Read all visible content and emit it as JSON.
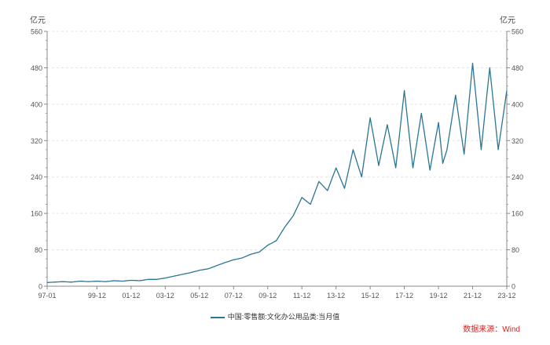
{
  "chart_data": {
    "type": "line",
    "ylabel_left": "亿元",
    "ylabel_right": "亿元",
    "ylim": [
      0,
      560
    ],
    "yticks": [
      0,
      80,
      160,
      240,
      320,
      400,
      480,
      560
    ],
    "x_tick_labels": [
      "97-01",
      "99-12",
      "01-12",
      "03-12",
      "05-12",
      "07-12",
      "09-12",
      "11-12",
      "13-12",
      "15-12",
      "17-12",
      "19-12",
      "21-12",
      "23-12"
    ],
    "grid": "horizontal dashed",
    "legend_position": "bottom-center",
    "series": [
      {
        "name": "中国:零售额:文化办公用品类:当月值",
        "color": "#2b7694",
        "anchors": [
          [
            "1997-01",
            8
          ],
          [
            "1997-06",
            9
          ],
          [
            "1997-12",
            10
          ],
          [
            "1998-06",
            9
          ],
          [
            "1998-12",
            11
          ],
          [
            "1999-06",
            10
          ],
          [
            "1999-12",
            11
          ],
          [
            "2000-06",
            10
          ],
          [
            "2000-12",
            12
          ],
          [
            "2001-06",
            11
          ],
          [
            "2001-12",
            13
          ],
          [
            "2002-06",
            12
          ],
          [
            "2002-12",
            15
          ],
          [
            "2003-06",
            15
          ],
          [
            "2003-12",
            18
          ],
          [
            "2004-06",
            22
          ],
          [
            "2004-12",
            26
          ],
          [
            "2005-06",
            30
          ],
          [
            "2005-12",
            35
          ],
          [
            "2006-06",
            38
          ],
          [
            "2006-12",
            45
          ],
          [
            "2007-06",
            52
          ],
          [
            "2007-12",
            58
          ],
          [
            "2008-06",
            62
          ],
          [
            "2008-12",
            70
          ],
          [
            "2009-06",
            75
          ],
          [
            "2009-12",
            90
          ],
          [
            "2010-06",
            100
          ],
          [
            "2010-12",
            130
          ],
          [
            "2011-06",
            155
          ],
          [
            "2011-12",
            195
          ],
          [
            "2012-06",
            180
          ],
          [
            "2012-12",
            230
          ],
          [
            "2013-06",
            210
          ],
          [
            "2013-12",
            260
          ],
          [
            "2014-06",
            215
          ],
          [
            "2014-12",
            300
          ],
          [
            "2015-06",
            240
          ],
          [
            "2015-12",
            370
          ],
          [
            "2016-06",
            265
          ],
          [
            "2016-12",
            355
          ],
          [
            "2017-06",
            260
          ],
          [
            "2017-12",
            430
          ],
          [
            "2018-06",
            260
          ],
          [
            "2018-12",
            380
          ],
          [
            "2019-06",
            255
          ],
          [
            "2019-12",
            360
          ],
          [
            "2020-03",
            270
          ],
          [
            "2020-06",
            300
          ],
          [
            "2020-12",
            420
          ],
          [
            "2021-06",
            290
          ],
          [
            "2021-12",
            490
          ],
          [
            "2022-06",
            300
          ],
          [
            "2022-12",
            480
          ],
          [
            "2023-06",
            300
          ],
          [
            "2023-12",
            430
          ]
        ]
      }
    ]
  },
  "units": {
    "left": "亿元",
    "right": "亿元"
  },
  "source": "数据来源：Wind"
}
